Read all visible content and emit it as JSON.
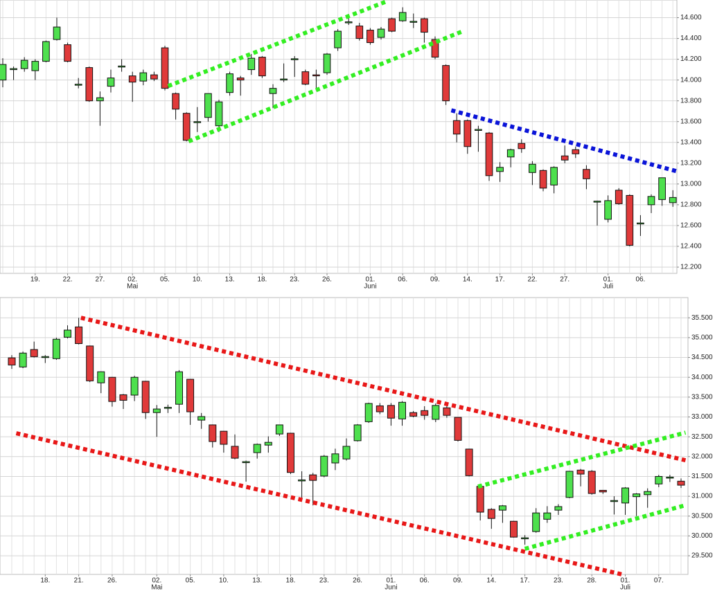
{
  "chart_data": [
    {
      "type": "candlestick",
      "categories": [
        null,
        null,
        null,
        "19.",
        null,
        null,
        "22.",
        null,
        null,
        "27.",
        null,
        null,
        "02.",
        null,
        null,
        "05.",
        null,
        null,
        "10.",
        null,
        null,
        "13.",
        null,
        null,
        "18.",
        null,
        null,
        "23.",
        null,
        null,
        "26.",
        null,
        null,
        null,
        "01.",
        null,
        null,
        "06.",
        null,
        null,
        "09.",
        null,
        null,
        "14.",
        null,
        null,
        "17.",
        null,
        null,
        "22.",
        null,
        null,
        "27.",
        null,
        null,
        null,
        "01.",
        null,
        null,
        "06.",
        null,
        null,
        null
      ],
      "month_labels": [
        null,
        null,
        null,
        null,
        null,
        null,
        null,
        null,
        null,
        null,
        null,
        null,
        "Mai",
        null,
        null,
        null,
        null,
        null,
        null,
        null,
        null,
        null,
        null,
        null,
        null,
        null,
        null,
        null,
        null,
        null,
        null,
        null,
        null,
        null,
        "Juni",
        null,
        null,
        null,
        null,
        null,
        null,
        null,
        null,
        null,
        null,
        null,
        null,
        null,
        null,
        null,
        null,
        null,
        null,
        null,
        null,
        null,
        "Juli",
        null,
        null,
        null,
        null,
        null,
        null
      ],
      "open": [
        14000,
        14100,
        14110,
        14090,
        14180,
        14390,
        14340,
        13950,
        14120,
        13800,
        13940,
        14130,
        14040,
        13990,
        14050,
        14310,
        13870,
        13680,
        13590,
        13640,
        13560,
        13880,
        14020,
        14100,
        14220,
        13870,
        14000,
        14200,
        14080,
        14050,
        14070,
        14310,
        14550,
        14520,
        14480,
        14410,
        14590,
        14570,
        14560,
        14590,
        14390,
        14140,
        13610,
        13610,
        13520,
        13490,
        13120,
        13260,
        13390,
        13110,
        13130,
        12990,
        13270,
        13330,
        13140,
        12830,
        12660,
        12940,
        12890,
        12620,
        12800,
        12850,
        12820
      ],
      "high": [
        14210,
        14130,
        14220,
        14200,
        14380,
        14600,
        14360,
        14020,
        14130,
        13890,
        14100,
        14200,
        14080,
        14100,
        14080,
        14330,
        13880,
        13690,
        13740,
        13870,
        13810,
        14080,
        14040,
        14250,
        14230,
        13960,
        14160,
        14230,
        14100,
        14100,
        14260,
        14490,
        14600,
        14550,
        14500,
        14510,
        14600,
        14700,
        14640,
        14600,
        14420,
        14150,
        13680,
        13620,
        13560,
        13500,
        13210,
        13340,
        13430,
        13220,
        13140,
        13170,
        13370,
        13360,
        13180,
        12840,
        12890,
        12960,
        12900,
        12700,
        12900,
        13060,
        12940
      ],
      "low": [
        13930,
        14000,
        14080,
        14000,
        14170,
        14380,
        14170,
        13920,
        13790,
        13560,
        13880,
        14080,
        13790,
        13950,
        13990,
        13900,
        13620,
        13410,
        13500,
        13600,
        13500,
        13850,
        13850,
        14050,
        14020,
        13730,
        13980,
        14030,
        13950,
        13900,
        14050,
        14280,
        14530,
        14380,
        14340,
        14390,
        14460,
        14560,
        14500,
        14360,
        14200,
        13760,
        13400,
        13290,
        13310,
        13030,
        13020,
        13160,
        13300,
        12990,
        12930,
        12910,
        13200,
        13250,
        12950,
        12600,
        12630,
        12800,
        12400,
        12500,
        12720,
        12790,
        12780
      ],
      "close": [
        14150,
        14110,
        14190,
        14180,
        14370,
        14510,
        14180,
        13960,
        13800,
        13830,
        14020,
        14130,
        13980,
        14070,
        14010,
        13920,
        13720,
        13420,
        13600,
        13870,
        13790,
        14060,
        14000,
        14210,
        14040,
        13920,
        14010,
        14200,
        13960,
        14040,
        14250,
        14470,
        14560,
        14400,
        14360,
        14490,
        14470,
        14650,
        14560,
        14460,
        14220,
        13800,
        13480,
        13360,
        13520,
        13080,
        13160,
        13330,
        13340,
        13190,
        12960,
        13160,
        13230,
        13290,
        13050,
        12830,
        12840,
        12810,
        12410,
        12620,
        12880,
        13060,
        12870
      ],
      "up_color": "#4ee04e",
      "down_color": "#e03a3a",
      "ylim": [
        12140,
        14770
      ],
      "yticks": [
        {
          "value": 12200,
          "label": "12.200"
        },
        {
          "value": 12400,
          "label": "12.400"
        },
        {
          "value": 12600,
          "label": "12.600"
        },
        {
          "value": 12800,
          "label": "12.800"
        },
        {
          "value": 13000,
          "label": "13.000"
        },
        {
          "value": 13200,
          "label": "13.200"
        },
        {
          "value": 13400,
          "label": "13.400"
        },
        {
          "value": 13600,
          "label": "13.600"
        },
        {
          "value": 13800,
          "label": "13.800"
        },
        {
          "value": 14000,
          "label": "14.000"
        },
        {
          "value": 14200,
          "label": "14.200"
        },
        {
          "value": 14400,
          "label": "14.400"
        },
        {
          "value": 14600,
          "label": "14.600"
        }
      ],
      "grid": true,
      "trendlines": [
        {
          "color": "#33ee22",
          "x": [
            15.3,
            35.6
          ],
          "y": [
            13942,
            14760
          ]
        },
        {
          "color": "#33ee22",
          "x": [
            17.2,
            42.5
          ],
          "y": [
            13410,
            14467
          ]
        },
        {
          "color": "#0a14d8",
          "x": [
            41.5,
            62.3
          ],
          "y": [
            13709,
            13124
          ]
        }
      ]
    },
    {
      "type": "candlestick",
      "categories": [
        null,
        null,
        null,
        "18.",
        null,
        null,
        "21.",
        null,
        null,
        "26.",
        null,
        null,
        null,
        "02.",
        null,
        null,
        "05.",
        null,
        null,
        "10.",
        null,
        null,
        "13.",
        null,
        null,
        "18.",
        null,
        null,
        "23.",
        null,
        null,
        "26.",
        null,
        null,
        "01.",
        null,
        null,
        "06.",
        null,
        null,
        "09.",
        null,
        null,
        "14.",
        null,
        null,
        "17.",
        null,
        null,
        "23.",
        null,
        null,
        "28.",
        null,
        null,
        "01.",
        null,
        null,
        "07.",
        null,
        null
      ],
      "month_labels": [
        null,
        null,
        null,
        null,
        null,
        null,
        null,
        null,
        null,
        null,
        null,
        null,
        null,
        "Mai",
        null,
        null,
        null,
        null,
        null,
        null,
        null,
        null,
        null,
        null,
        null,
        null,
        null,
        null,
        null,
        null,
        null,
        null,
        null,
        null,
        "Juni",
        null,
        null,
        null,
        null,
        null,
        null,
        null,
        null,
        null,
        null,
        null,
        null,
        null,
        null,
        null,
        null,
        null,
        null,
        null,
        null,
        "Juli",
        null,
        null,
        null,
        null,
        null
      ],
      "open": [
        34490,
        34260,
        34700,
        34510,
        34470,
        35010,
        35270,
        34790,
        33860,
        34000,
        33560,
        33550,
        33900,
        33110,
        33230,
        33320,
        33950,
        32920,
        32800,
        32640,
        32260,
        31860,
        32100,
        32290,
        32570,
        32590,
        31400,
        31540,
        31510,
        31840,
        31940,
        32400,
        32880,
        33280,
        33290,
        32950,
        33110,
        33160,
        32940,
        33230,
        32990,
        32190,
        31250,
        30670,
        30650,
        30370,
        29940,
        30110,
        30420,
        30650,
        30970,
        31660,
        31630,
        31150,
        30880,
        30830,
        30990,
        31040,
        31310,
        31470,
        31380
      ],
      "high": [
        34560,
        34650,
        34900,
        34560,
        35000,
        35310,
        35500,
        34800,
        34150,
        34010,
        33580,
        34040,
        33910,
        33300,
        33310,
        34180,
        33960,
        33100,
        32810,
        32650,
        32560,
        31900,
        32330,
        32510,
        32800,
        32600,
        31630,
        31590,
        32040,
        32200,
        32460,
        32820,
        33360,
        33350,
        33350,
        33400,
        33150,
        33270,
        33340,
        33290,
        33000,
        32200,
        31260,
        30700,
        30780,
        30380,
        30020,
        30700,
        30750,
        30800,
        31640,
        31690,
        31660,
        31160,
        31000,
        31230,
        31080,
        31200,
        31540,
        31540,
        31450
      ],
      "low": [
        34210,
        34230,
        34500,
        34360,
        34440,
        34980,
        34830,
        33880,
        33600,
        33260,
        33200,
        33400,
        32950,
        32500,
        33100,
        33100,
        32800,
        32700,
        32230,
        32100,
        31930,
        31370,
        31950,
        32100,
        32520,
        31560,
        30960,
        30770,
        31480,
        31660,
        31900,
        32380,
        32850,
        33070,
        32780,
        32780,
        32990,
        32930,
        32870,
        32980,
        32380,
        31500,
        30390,
        30180,
        30330,
        29960,
        29780,
        30080,
        30330,
        30530,
        30950,
        31250,
        31040,
        31060,
        30540,
        30530,
        30500,
        30710,
        31230,
        31360,
        31210
      ],
      "close": [
        34310,
        34610,
        34520,
        34510,
        34960,
        35190,
        34850,
        33910,
        34140,
        33390,
        33420,
        34000,
        33110,
        33200,
        33230,
        34140,
        33130,
        33010,
        32380,
        32310,
        31960,
        31860,
        32310,
        32360,
        32800,
        31600,
        31400,
        31400,
        32010,
        32070,
        32260,
        32800,
        33340,
        33130,
        32970,
        33370,
        33020,
        33040,
        33290,
        33040,
        32410,
        31520,
        30600,
        30440,
        30760,
        29970,
        29940,
        30580,
        30580,
        30740,
        31630,
        31560,
        31070,
        31110,
        30880,
        31210,
        31060,
        31120,
        31500,
        31470,
        31280
      ],
      "up_color": "#4ee04e",
      "down_color": "#e03a3a",
      "ylim": [
        29030,
        36010
      ],
      "yticks": [
        {
          "value": 29500,
          "label": "29.500"
        },
        {
          "value": 30000,
          "label": "30.000"
        },
        {
          "value": 30500,
          "label": "30.500"
        },
        {
          "value": 31000,
          "label": "31.000"
        },
        {
          "value": 31500,
          "label": "31.500"
        },
        {
          "value": 32000,
          "label": "32.000"
        },
        {
          "value": 32500,
          "label": "32.500"
        },
        {
          "value": 33000,
          "label": "33.000"
        },
        {
          "value": 33500,
          "label": "33.500"
        },
        {
          "value": 34000,
          "label": "34.000"
        },
        {
          "value": 34500,
          "label": "34.500"
        },
        {
          "value": 35000,
          "label": "35.000"
        },
        {
          "value": 35500,
          "label": "35.500"
        }
      ],
      "grid": true,
      "trendlines": [
        {
          "color": "#e81818",
          "x": [
            6.2,
            60.4
          ],
          "y": [
            35500,
            31907
          ]
        },
        {
          "color": "#e81818",
          "x": [
            0.4,
            54.7
          ],
          "y": [
            32588,
            29030
          ]
        },
        {
          "color": "#33ee22",
          "x": [
            41.8,
            60.4
          ],
          "y": [
            31245,
            32605
          ]
        },
        {
          "color": "#33ee22",
          "x": [
            46,
            60.4
          ],
          "y": [
            29675,
            30774
          ]
        }
      ]
    }
  ]
}
